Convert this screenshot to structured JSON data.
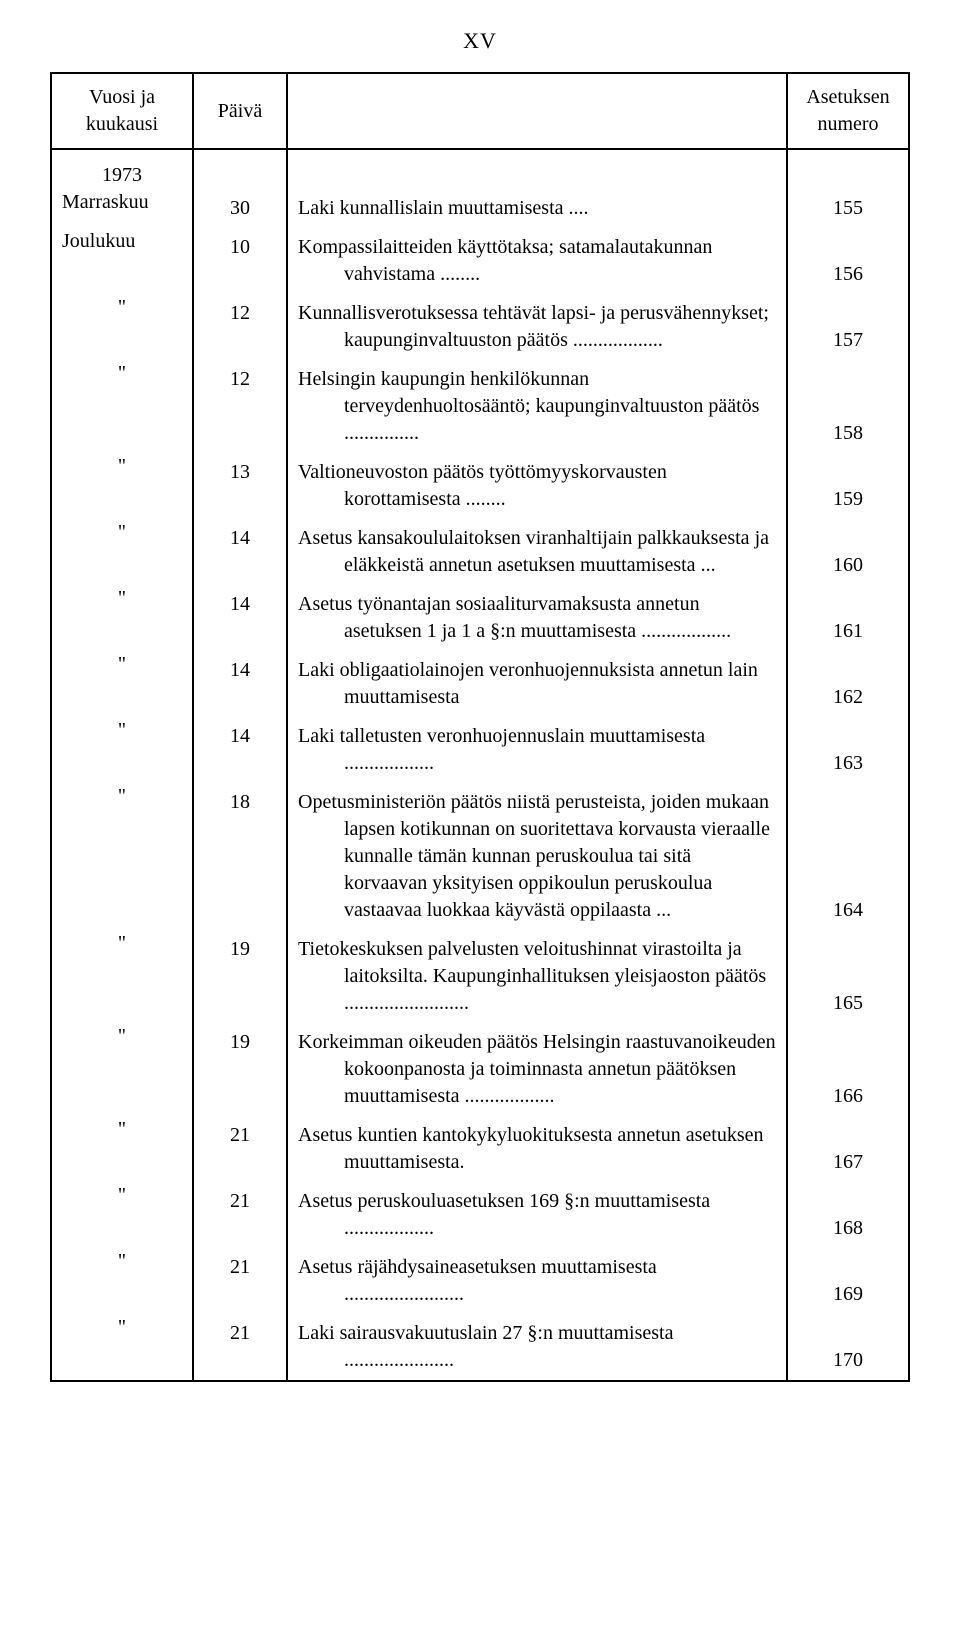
{
  "page_label": "XV",
  "header": {
    "col1": "Vuosi ja kuukausi",
    "col2": "Päivä",
    "col3": "",
    "col4": "Asetuksen numero"
  },
  "year": "1973",
  "rows": [
    {
      "month": "Marraskuu",
      "day": "30",
      "text": "Laki kunnallislain muuttamisesta ....",
      "ref": "155"
    },
    {
      "month": "Joulukuu",
      "day": "10",
      "text": "Kompassilaitteiden käyttötaksa; satamalautakunnan vahvistama ........",
      "ref": "156"
    },
    {
      "month": "\"",
      "day": "12",
      "text": "Kunnallisverotuksessa tehtävät lapsi- ja perusvähennykset; kaupunginvaltuuston päätös ..................",
      "ref": "157"
    },
    {
      "month": "\"",
      "day": "12",
      "text": "Helsingin kaupungin henkilökunnan terveydenhuoltosääntö; kaupunginvaltuuston päätös ...............",
      "ref": "158"
    },
    {
      "month": "\"",
      "day": "13",
      "text": "Valtioneuvoston päätös työttömyyskorvausten korottamisesta ........",
      "ref": "159"
    },
    {
      "month": "\"",
      "day": "14",
      "text": "Asetus kansakoululaitoksen viranhaltijain palkkauksesta ja eläkkeistä annetun asetuksen muuttamisesta ...",
      "ref": "160"
    },
    {
      "month": "\"",
      "day": "14",
      "text": "Asetus työnantajan sosiaaliturvamaksusta annetun asetuksen 1 ja 1 a §:n muuttamisesta ..................",
      "ref": "161"
    },
    {
      "month": "\"",
      "day": "14",
      "text": "Laki obligaatiolainojen veronhuojennuksista annetun lain muuttamisesta",
      "ref": "162"
    },
    {
      "month": "\"",
      "day": "14",
      "text": "Laki talletusten veronhuojennuslain muuttamisesta ..................",
      "ref": "163"
    },
    {
      "month": "\"",
      "day": "18",
      "text": "Opetusministeriön päätös niistä perusteista, joiden mukaan lapsen kotikunnan on suoritettava korvausta vieraalle kunnalle tämän kunnan peruskoulua tai sitä korvaavan yksityisen oppikoulun peruskoulua vastaavaa luokkaa käyvästä oppilaasta ...",
      "ref": "164"
    },
    {
      "month": "\"",
      "day": "19",
      "text": "Tietokeskuksen palvelusten veloitushinnat virastoilta ja laitoksilta. Kaupunginhallituksen yleisjaoston päätös .........................",
      "ref": "165"
    },
    {
      "month": "\"",
      "day": "19",
      "text": "Korkeimman oikeuden päätös Helsingin raastuvanoikeuden kokoonpanosta ja toiminnasta annetun päätöksen muuttamisesta ..................",
      "ref": "166"
    },
    {
      "month": "\"",
      "day": "21",
      "text": "Asetus kuntien kantokykyluokituksesta annetun asetuksen muuttamisesta.",
      "ref": "167"
    },
    {
      "month": "\"",
      "day": "21",
      "text": "Asetus peruskouluasetuksen 169 §:n muuttamisesta ..................",
      "ref": "168"
    },
    {
      "month": "\"",
      "day": "21",
      "text": "Asetus räjähdysaineasetuksen muuttamisesta ........................",
      "ref": "169"
    },
    {
      "month": "\"",
      "day": "21",
      "text": "Laki sairausvakuutuslain 27 §:n muuttamisesta ......................",
      "ref": "170"
    }
  ]
}
